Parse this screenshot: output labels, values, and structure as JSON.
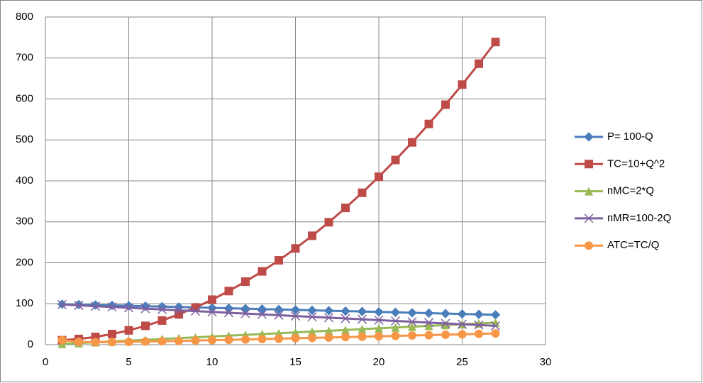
{
  "chart_data": {
    "type": "scatter",
    "x": [
      1,
      2,
      3,
      4,
      5,
      6,
      7,
      8,
      9,
      10,
      11,
      12,
      13,
      14,
      15,
      16,
      17,
      18,
      19,
      20,
      21,
      22,
      23,
      24,
      25,
      26,
      27
    ],
    "series": [
      {
        "name": "P= 100-Q",
        "color": "#4a7ebb",
        "marker": "diamond",
        "values": [
          99,
          98,
          97,
          96,
          95,
          94,
          93,
          92,
          91,
          90,
          89,
          88,
          87,
          86,
          85,
          84,
          83,
          82,
          81,
          80,
          79,
          78,
          77,
          76,
          75,
          74,
          73
        ]
      },
      {
        "name": "TC=10+Q^2",
        "color": "#be4b48",
        "marker": "square",
        "values": [
          11,
          14,
          19,
          26,
          35,
          46,
          59,
          74,
          91,
          110,
          131,
          154,
          179,
          206,
          235,
          266,
          299,
          334,
          371,
          410,
          451,
          494,
          539,
          586,
          635,
          686,
          739
        ]
      },
      {
        "name": "пMC=2*Q",
        "color": "#98b954",
        "marker": "triangle",
        "values": [
          2,
          4,
          6,
          8,
          10,
          12,
          14,
          16,
          18,
          20,
          22,
          24,
          26,
          28,
          30,
          32,
          34,
          36,
          38,
          40,
          42,
          44,
          46,
          48,
          50,
          52,
          54
        ]
      },
      {
        "name": "пMR=100-2Q",
        "color": "#7d60a0",
        "marker": "x",
        "values": [
          98,
          96,
          94,
          92,
          90,
          88,
          86,
          84,
          82,
          80,
          78,
          76,
          74,
          72,
          70,
          68,
          66,
          64,
          62,
          60,
          58,
          56,
          54,
          52,
          50,
          48,
          46
        ]
      },
      {
        "name": "ATC=TC/Q",
        "color": "#f79646",
        "marker": "circle",
        "values": [
          11,
          7,
          6.3,
          6.5,
          7,
          7.7,
          8.4,
          9.3,
          10.1,
          11,
          11.9,
          12.8,
          13.8,
          14.7,
          15.7,
          16.6,
          17.6,
          18.6,
          19.5,
          20.5,
          21.5,
          22.5,
          23.4,
          24.4,
          25.4,
          26.4,
          27.4
        ]
      }
    ],
    "xlim": [
      0,
      30
    ],
    "xticks": [
      0,
      5,
      10,
      15,
      20,
      25,
      30
    ],
    "ylim": [
      0,
      800
    ],
    "yticks": [
      0,
      100,
      200,
      300,
      400,
      500,
      600,
      700,
      800
    ],
    "grid": true,
    "legend": "right"
  }
}
